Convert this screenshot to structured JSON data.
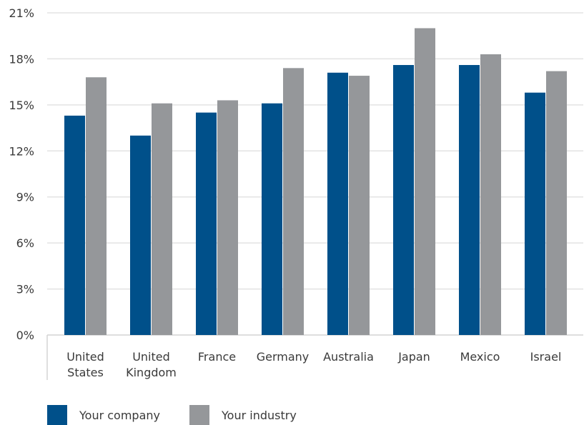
{
  "chart_data": {
    "type": "bar",
    "categories": [
      [
        "United",
        "States"
      ],
      [
        "United",
        "Kingdom"
      ],
      [
        "France"
      ],
      [
        "Germany"
      ],
      [
        "Australia"
      ],
      [
        "Japan"
      ],
      [
        "Mexico"
      ],
      [
        "Israel"
      ]
    ],
    "series": [
      {
        "name": "Your company",
        "color": "#00508a",
        "values": [
          14.3,
          13.0,
          14.5,
          15.1,
          17.1,
          17.6,
          17.6,
          15.8
        ]
      },
      {
        "name": "Your industry",
        "color": "#95979a",
        "values": [
          16.8,
          15.1,
          15.3,
          17.4,
          16.9,
          20.0,
          18.3,
          17.2
        ]
      }
    ],
    "y_ticks": [
      "0%",
      "3%",
      "6%",
      "9%",
      "12%",
      "15%",
      "18%",
      "21%"
    ],
    "ylim": [
      0,
      21
    ],
    "grid": true,
    "legend_position": "bottom-left",
    "title": "",
    "xlabel": "",
    "ylabel": ""
  }
}
